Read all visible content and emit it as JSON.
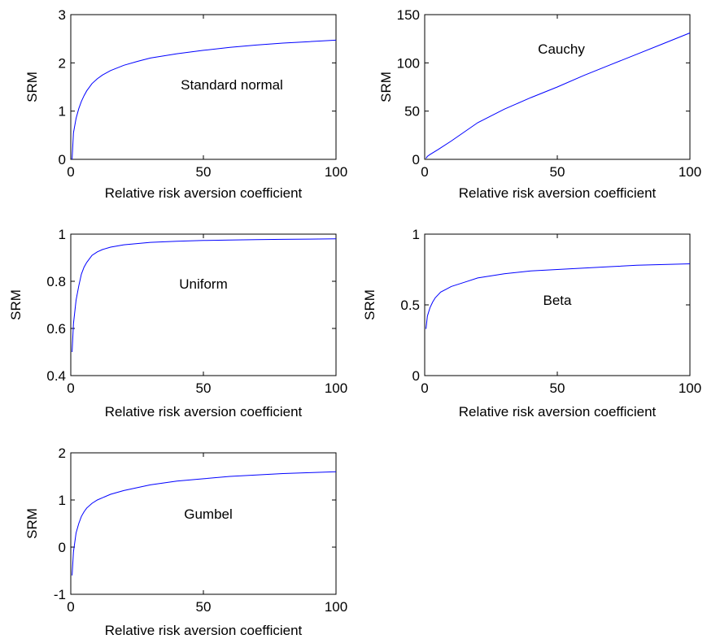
{
  "chart_data": [
    {
      "type": "line",
      "annotation": "Standard normal",
      "xlabel": "Relative risk aversion coefficient",
      "ylabel": "SRM",
      "xlim": [
        0,
        100
      ],
      "ylim": [
        0,
        3
      ],
      "xticks": [
        0,
        50,
        100
      ],
      "yticks": [
        0,
        1,
        2,
        3
      ],
      "grid": false,
      "color": "#0000ff",
      "series": [
        {
          "x": [
            0.5,
            1,
            2,
            3,
            4,
            5,
            6,
            8,
            10,
            12,
            15,
            20,
            25,
            30,
            40,
            50,
            60,
            70,
            80,
            90,
            100
          ],
          "values": [
            0.0,
            0.55,
            0.85,
            1.05,
            1.2,
            1.32,
            1.42,
            1.57,
            1.67,
            1.75,
            1.84,
            1.95,
            2.03,
            2.1,
            2.19,
            2.26,
            2.32,
            2.37,
            2.41,
            2.44,
            2.47
          ]
        }
      ]
    },
    {
      "type": "line",
      "annotation": "Cauchy",
      "xlabel": "Relative  risk aversion coefficient",
      "ylabel": "SRM",
      "xlim": [
        0,
        100
      ],
      "ylim": [
        0,
        150
      ],
      "xticks": [
        0,
        50,
        100
      ],
      "yticks": [
        0,
        50,
        100,
        150
      ],
      "grid": false,
      "color": "#0000ff",
      "series": [
        {
          "x": [
            0.5,
            1,
            2,
            5,
            10,
            20,
            30,
            40,
            50,
            60,
            70,
            80,
            90,
            100
          ],
          "values": [
            1,
            3,
            5,
            10,
            19,
            38,
            52,
            64,
            75,
            87,
            98,
            109,
            120,
            131
          ]
        }
      ]
    },
    {
      "type": "line",
      "annotation": "Uniform",
      "xlabel": "Relative  risk aversion coefficient",
      "ylabel": "SRM",
      "xlim": [
        0,
        100
      ],
      "ylim": [
        0.4,
        1
      ],
      "xticks": [
        0,
        50,
        100
      ],
      "yticks": [
        0.4,
        0.6,
        0.8,
        1
      ],
      "grid": false,
      "color": "#0000ff",
      "series": [
        {
          "x": [
            0.5,
            1,
            2,
            3,
            4,
            5,
            6,
            8,
            10,
            12,
            15,
            20,
            30,
            40,
            50,
            60,
            70,
            80,
            90,
            100
          ],
          "values": [
            0.5,
            0.62,
            0.72,
            0.78,
            0.83,
            0.86,
            0.88,
            0.91,
            0.925,
            0.935,
            0.945,
            0.955,
            0.965,
            0.97,
            0.973,
            0.975,
            0.977,
            0.978,
            0.979,
            0.98
          ]
        }
      ]
    },
    {
      "type": "line",
      "annotation": "Beta",
      "xlabel": "Relative  risk aversion coefficient",
      "ylabel": "SRM",
      "xlim": [
        0,
        100
      ],
      "ylim": [
        0,
        1
      ],
      "xticks": [
        0,
        50,
        100
      ],
      "yticks": [
        0,
        0.5,
        1
      ],
      "grid": false,
      "color": "#0000ff",
      "series": [
        {
          "x": [
            0.5,
            1,
            2,
            3,
            4,
            5,
            6,
            8,
            10,
            15,
            20,
            30,
            40,
            50,
            60,
            70,
            80,
            90,
            100
          ],
          "values": [
            0.33,
            0.42,
            0.48,
            0.52,
            0.55,
            0.57,
            0.59,
            0.61,
            0.63,
            0.66,
            0.69,
            0.72,
            0.74,
            0.75,
            0.76,
            0.77,
            0.78,
            0.785,
            0.79
          ]
        }
      ]
    },
    {
      "type": "line",
      "annotation": "Gumbel",
      "xlabel": "Relative risk aversion coefficient",
      "ylabel": "SRM",
      "xlim": [
        0,
        100
      ],
      "ylim": [
        -1,
        2
      ],
      "xticks": [
        0,
        50,
        100
      ],
      "yticks": [
        -1,
        0,
        1,
        2
      ],
      "grid": false,
      "color": "#0000ff",
      "series": [
        {
          "x": [
            0.5,
            1,
            2,
            3,
            4,
            5,
            6,
            8,
            10,
            15,
            20,
            25,
            30,
            40,
            50,
            60,
            70,
            80,
            90,
            100
          ],
          "values": [
            -0.6,
            -0.1,
            0.3,
            0.5,
            0.65,
            0.75,
            0.83,
            0.93,
            1.0,
            1.12,
            1.2,
            1.26,
            1.32,
            1.4,
            1.45,
            1.5,
            1.53,
            1.56,
            1.58,
            1.6
          ]
        }
      ]
    }
  ]
}
